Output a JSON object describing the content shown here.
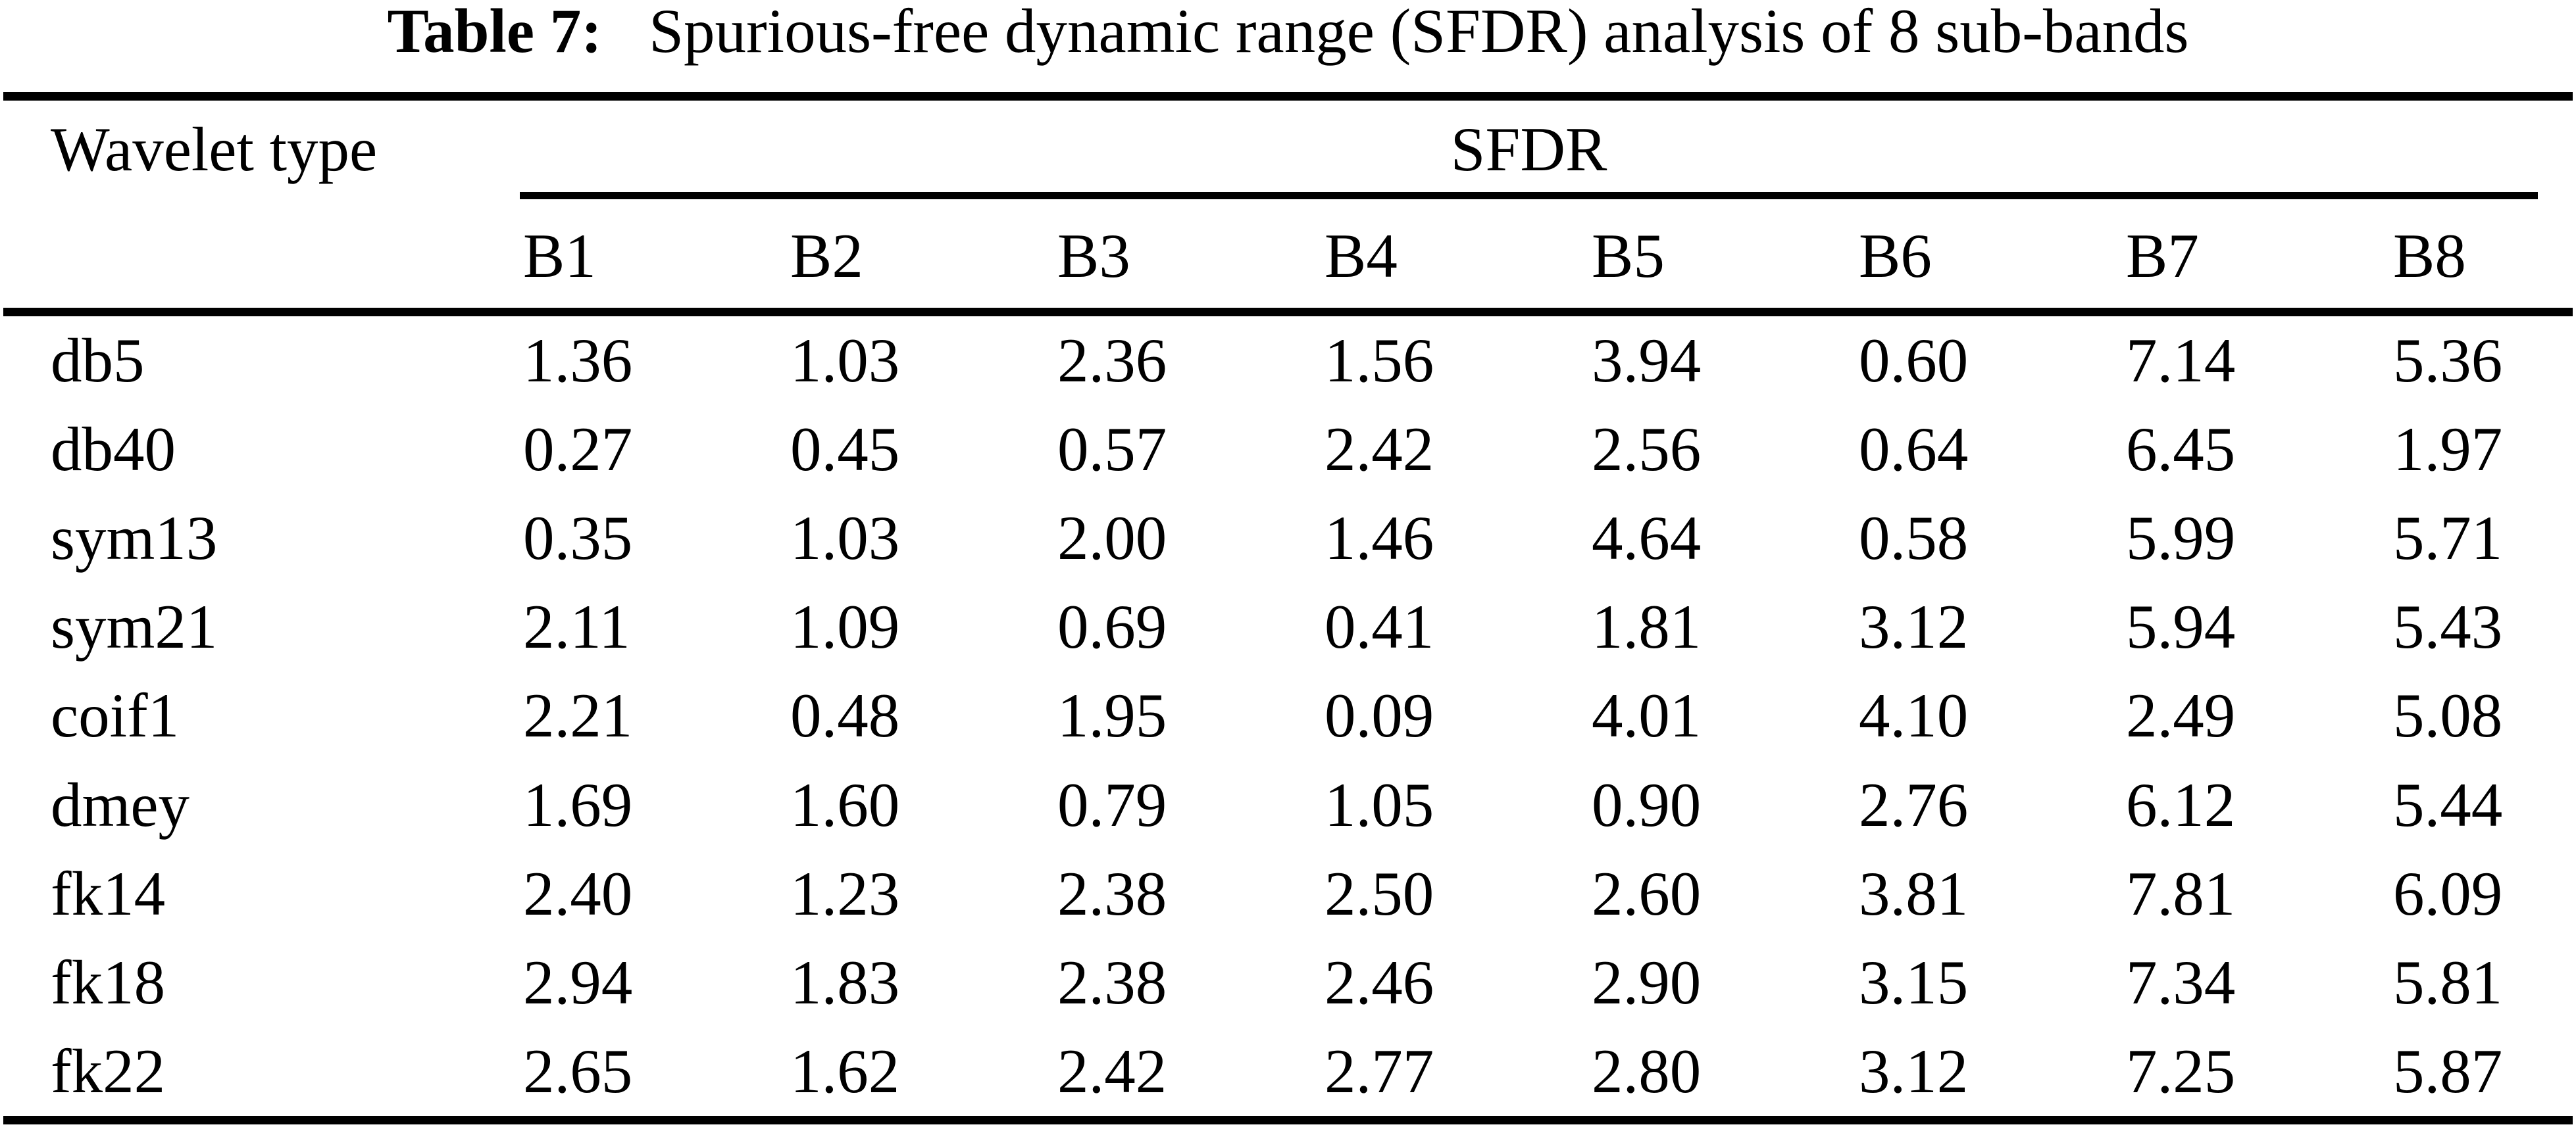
{
  "caption": {
    "label": "Table 7:",
    "text": "Spurious-free dynamic range (SFDR) analysis of 8 sub-bands"
  },
  "table": {
    "row_header": "Wavelet type",
    "group_header": "SFDR",
    "columns": [
      "B1",
      "B2",
      "B3",
      "B4",
      "B5",
      "B6",
      "B7",
      "B8"
    ],
    "rows": [
      {
        "label": "db5",
        "values": [
          "1.36",
          "1.03",
          "2.36",
          "1.56",
          "3.94",
          "0.60",
          "7.14",
          "5.36"
        ]
      },
      {
        "label": "db40",
        "values": [
          "0.27",
          "0.45",
          "0.57",
          "2.42",
          "2.56",
          "0.64",
          "6.45",
          "1.97"
        ]
      },
      {
        "label": "sym13",
        "values": [
          "0.35",
          "1.03",
          "2.00",
          "1.46",
          "4.64",
          "0.58",
          "5.99",
          "5.71"
        ]
      },
      {
        "label": "sym21",
        "values": [
          "2.11",
          "1.09",
          "0.69",
          "0.41",
          "1.81",
          "3.12",
          "5.94",
          "5.43"
        ]
      },
      {
        "label": "coif1",
        "values": [
          "2.21",
          "0.48",
          "1.95",
          "0.09",
          "4.01",
          "4.10",
          "2.49",
          "5.08"
        ]
      },
      {
        "label": "dmey",
        "values": [
          "1.69",
          "1.60",
          "0.79",
          "1.05",
          "0.90",
          "2.76",
          "6.12",
          "5.44"
        ]
      },
      {
        "label": "fk14",
        "values": [
          "2.40",
          "1.23",
          "2.38",
          "2.50",
          "2.60",
          "3.81",
          "7.81",
          "6.09"
        ]
      },
      {
        "label": "fk18",
        "values": [
          "2.94",
          "1.83",
          "2.38",
          "2.46",
          "2.90",
          "3.15",
          "7.34",
          "5.81"
        ]
      },
      {
        "label": "fk22",
        "values": [
          "2.65",
          "1.62",
          "2.42",
          "2.77",
          "2.80",
          "3.12",
          "7.25",
          "5.87"
        ]
      }
    ]
  }
}
